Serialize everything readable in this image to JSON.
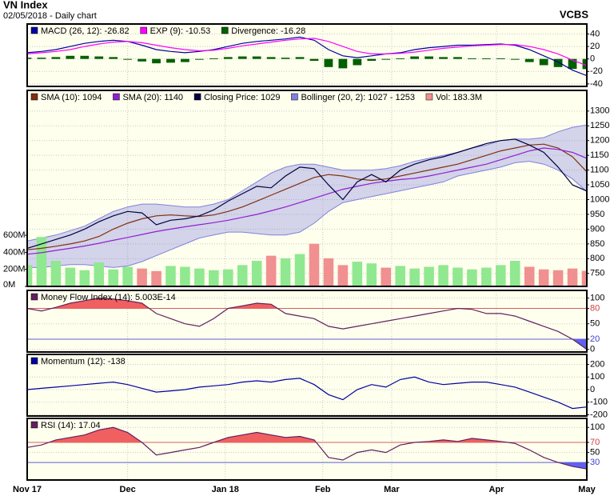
{
  "chart_data": {
    "title": "VN Index",
    "subtitle": "02/05/2018 - Daily chart",
    "source": "VCBS",
    "xlim": [
      0,
      39
    ],
    "xticks": [
      {
        "value": 0,
        "label": "Nov 17"
      },
      {
        "value": 7,
        "label": "Dec"
      },
      {
        "value": 13.8,
        "label": "Jan 18"
      },
      {
        "value": 20.6,
        "label": "Feb"
      },
      {
        "value": 25.4,
        "label": "Mar"
      },
      {
        "value": 32.7,
        "label": "Apr"
      },
      {
        "value": 39,
        "label": "May"
      }
    ],
    "grid": true,
    "panels": [
      {
        "type": "macd",
        "ylim": [
          -44,
          56
        ],
        "yticks": [
          40,
          20,
          0,
          -20,
          -40
        ],
        "series": [
          {
            "name": "MACD (26, 12): -26.82",
            "color": "#0000a0",
            "values": [
              10,
              12,
              15,
              20,
              25,
              28,
              30,
              28,
              22,
              15,
              12,
              10,
              12,
              15,
              20,
              25,
              28,
              30,
              32,
              35,
              30,
              15,
              5,
              2,
              5,
              8,
              10,
              15,
              18,
              20,
              22,
              22,
              23,
              24,
              22,
              15,
              5,
              -5,
              -18,
              -26.82
            ]
          },
          {
            "name": "EXP (9): -10.53",
            "color": "#ff00ff",
            "values": [
              8,
              10,
              12,
              15,
              20,
              24,
              27,
              28,
              26,
              22,
              18,
              15,
              13,
              14,
              17,
              21,
              24,
              27,
              30,
              32,
              33,
              28,
              20,
              12,
              8,
              8,
              9,
              11,
              14,
              17,
              19,
              21,
              22,
              23,
              23,
              20,
              15,
              8,
              -2,
              -10.53
            ]
          },
          {
            "name": "Divergence: -16.28",
            "color": "#006000",
            "style": "bar",
            "values": [
              2,
              2,
              3,
              5,
              5,
              4,
              3,
              0,
              -4,
              -7,
              -6,
              -5,
              -1,
              1,
              3,
              4,
              4,
              3,
              2,
              3,
              -3,
              -13,
              -15,
              -10,
              -3,
              0,
              1,
              4,
              4,
              3,
              3,
              1,
              1,
              1,
              -1,
              -5,
              -10,
              -13,
              -16,
              -16.28
            ]
          }
        ]
      },
      {
        "type": "stock",
        "ylim": [
          706,
          1370
        ],
        "yticks": [
          750,
          800,
          850,
          900,
          950,
          1000,
          1050,
          1100,
          1150,
          1200,
          1250,
          1300
        ],
        "y2lim": [
          0,
          2300
        ],
        "y2ticks": [
          {
            "value": 0,
            "label": "0M"
          },
          {
            "value": 200,
            "label": "200M"
          },
          {
            "value": 400,
            "label": "400M"
          },
          {
            "value": 600,
            "label": "600M"
          }
        ],
        "series": [
          {
            "name": "SMA (10): 1094",
            "color": "#803010",
            "values": [
              830,
              835,
              842,
              850,
              860,
              875,
              900,
              920,
              935,
              945,
              948,
              945,
              943,
              948,
              960,
              975,
              995,
              1015,
              1035,
              1055,
              1075,
              1085,
              1080,
              1070,
              1065,
              1070,
              1080,
              1090,
              1100,
              1110,
              1120,
              1135,
              1150,
              1165,
              1175,
              1185,
              1188,
              1175,
              1145,
              1094
            ]
          },
          {
            "name": "SMA (20): 1140",
            "color": "#9020d0",
            "values": [
              815,
              820,
              828,
              835,
              843,
              852,
              862,
              872,
              882,
              892,
              900,
              908,
              915,
              922,
              930,
              940,
              950,
              962,
              975,
              990,
              1005,
              1020,
              1035,
              1045,
              1055,
              1062,
              1068,
              1072,
              1080,
              1090,
              1100,
              1110,
              1120,
              1135,
              1150,
              1165,
              1175,
              1170,
              1160,
              1140
            ]
          },
          {
            "name": "Closing Price: 1029",
            "color": "#000040",
            "values": [
              835,
              850,
              865,
              880,
              900,
              925,
              945,
              960,
              955,
              915,
              930,
              935,
              945,
              965,
              995,
              1020,
              1045,
              1040,
              1080,
              1110,
              1105,
              1050,
              1000,
              1060,
              1085,
              1060,
              1100,
              1120,
              1135,
              1145,
              1160,
              1175,
              1190,
              1200,
              1205,
              1185,
              1160,
              1110,
              1050,
              1029
            ]
          },
          {
            "name": "Bollinger (20, 2): 1027 - 1253",
            "color": "#8080e0",
            "style": "band",
            "upper": [
              860,
              870,
              880,
              895,
              910,
              935,
              960,
              975,
              985,
              985,
              980,
              975,
              975,
              985,
              1000,
              1030,
              1060,
              1090,
              1110,
              1120,
              1120,
              1110,
              1100,
              1100,
              1100,
              1105,
              1115,
              1130,
              1140,
              1150,
              1160,
              1175,
              1185,
              1200,
              1205,
              1205,
              1210,
              1230,
              1245,
              1253
            ],
            "lower": [
              770,
              770,
              775,
              780,
              780,
              775,
              770,
              775,
              790,
              810,
              830,
              850,
              870,
              880,
              890,
              890,
              885,
              880,
              880,
              890,
              920,
              960,
              990,
              1000,
              1010,
              1020,
              1030,
              1040,
              1050,
              1060,
              1080,
              1090,
              1100,
              1110,
              1125,
              1130,
              1120,
              1100,
              1070,
              1027
            ]
          },
          {
            "name": "Vol: 183.3M",
            "color": "#f09090",
            "up_color": "#90e890",
            "style": "volume",
            "axis": "y2",
            "values": [
              250,
              580,
              300,
              220,
              190,
              280,
              200,
              230,
              210,
              180,
              240,
              230,
              210,
              190,
              200,
              250,
              300,
              360,
              330,
              380,
              500,
              330,
              250,
              290,
              270,
              220,
              240,
              210,
              230,
              250,
              220,
              200,
              220,
              250,
              300,
              230,
              200,
              190,
              210,
              183.3
            ]
          }
        ]
      },
      {
        "type": "oscillator",
        "ylim": [
          -5,
          115
        ],
        "yticks": [
          0,
          20,
          50,
          80,
          100
        ],
        "overbought": 80,
        "oversold": 20,
        "series": [
          {
            "name": "Money Flow Index (14): 5.003E-14",
            "color": "#602060",
            "values": [
              80,
              75,
              82,
              90,
              95,
              100,
              98,
              95,
              90,
              70,
              60,
              50,
              45,
              60,
              80,
              85,
              90,
              88,
              70,
              65,
              60,
              45,
              40,
              45,
              50,
              55,
              60,
              65,
              70,
              75,
              80,
              78,
              70,
              70,
              65,
              55,
              45,
              35,
              20,
              5.003e-14
            ]
          }
        ]
      },
      {
        "type": "line",
        "ylim": [
          -210,
          280
        ],
        "yticks": [
          -200,
          -100,
          0,
          100,
          200
        ],
        "series": [
          {
            "name": "Momentum (12): -138",
            "color": "#0000a0",
            "values": [
              0,
              10,
              20,
              30,
              40,
              50,
              60,
              40,
              10,
              -20,
              -10,
              0,
              20,
              30,
              40,
              60,
              70,
              60,
              80,
              90,
              40,
              -40,
              -80,
              0,
              40,
              20,
              80,
              100,
              60,
              40,
              50,
              60,
              60,
              40,
              20,
              -20,
              -60,
              -100,
              -150,
              -138
            ]
          }
        ]
      },
      {
        "type": "oscillator",
        "ylim": [
          -5,
          118
        ],
        "yticks": [
          30,
          50,
          70,
          100
        ],
        "overbought": 70,
        "oversold": 30,
        "series": [
          {
            "name": "RSI (14): 17.04",
            "color": "#602060",
            "values": [
              60,
              65,
              75,
              80,
              85,
              95,
              100,
              90,
              70,
              45,
              50,
              55,
              60,
              70,
              80,
              85,
              90,
              85,
              80,
              82,
              75,
              40,
              35,
              50,
              55,
              50,
              65,
              70,
              72,
              75,
              72,
              78,
              75,
              72,
              68,
              55,
              40,
              30,
              22,
              17.04
            ]
          }
        ]
      }
    ]
  }
}
